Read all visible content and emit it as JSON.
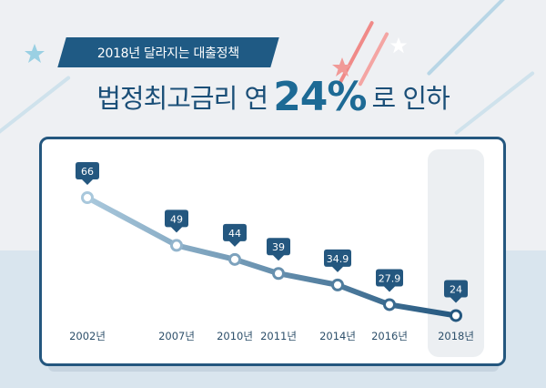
{
  "banner": {
    "label": "2018년 달라지는 대출정책"
  },
  "headline": {
    "pre": "법정최고금리 연",
    "big": "24%",
    "post": "로 인하"
  },
  "chart_data": {
    "type": "line",
    "title": "",
    "xlabel": "",
    "ylabel": "",
    "categories": [
      "2002년",
      "2007년",
      "2010년",
      "2011년",
      "2014년",
      "2016년",
      "2018년"
    ],
    "years": [
      2002,
      2007,
      2010,
      2011,
      2014,
      2016,
      2018
    ],
    "values": [
      66,
      49,
      44,
      39,
      34.9,
      27.9,
      24
    ],
    "value_labels": [
      "66",
      "49",
      "44",
      "39",
      "34.9",
      "27.9",
      "24"
    ],
    "highlight_category": "2018년",
    "grid": false,
    "legend": "none"
  },
  "colors": {
    "dark_blue": "#1f5a84",
    "line_start": "#a9c8dc",
    "line_end": "#24577f",
    "label_bubble": "#24577f",
    "year_text": "#2d4f6a"
  }
}
